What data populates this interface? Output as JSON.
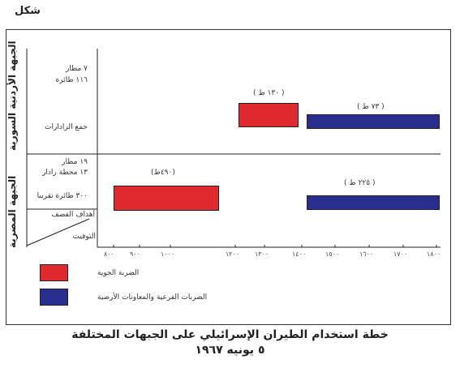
{
  "figure_label": "شكل",
  "fronts": [
    {
      "name": "الجبهة الأردنية السورية",
      "info_lines": [
        "٧  مطار",
        "١١٦ طائرة"
      ],
      "info_note": "جمع الرادارات",
      "strikes": [
        {
          "type": "air",
          "label": "( ١٣٠ ط )",
          "start": 1200,
          "end": 1350
        },
        {
          "type": "ground",
          "label": "( ٧٣ ط )",
          "start": 1400,
          "end": 1900
        }
      ]
    },
    {
      "name": "الجبهة المصرية",
      "info_lines": [
        "١٩  مطار",
        "١٣ محطة رادار"
      ],
      "info_note": "٣٠٠ طائرة تقريبا",
      "strikes": [
        {
          "type": "air",
          "label": "(٤٩٠ط)",
          "start": 800,
          "end": 1200
        },
        {
          "type": "ground",
          "label": "( ٢٢٥ ط )",
          "start": 1400,
          "end": 1900
        }
      ]
    }
  ],
  "corner": {
    "targets": "أهداف القصف",
    "timing": "التوقيت"
  },
  "axis_ticks": [
    "٨٠٠",
    "٩٠٠",
    "١٠٠٠",
    "١٢٠٠",
    "١٣٠٠",
    "١٤٠٠",
    "١٥٠٠",
    "١٦٠٠",
    "١٧٠٠",
    "١٨٠٠"
  ],
  "legend": [
    {
      "label": "الضربة الجوية",
      "color": "#e02a2f"
    },
    {
      "label": "الضربات الفرعية والمعاونات الأرضية",
      "color": "#2a2f8f"
    }
  ],
  "title_line1": "خطة استخدام الطيران الإسرائيلي على الجبهات المختلفة",
  "title_line2": "٥ يونيه ١٩٦٧",
  "colors": {
    "air": "#e02a2f",
    "ground": "#2a2f8f"
  }
}
